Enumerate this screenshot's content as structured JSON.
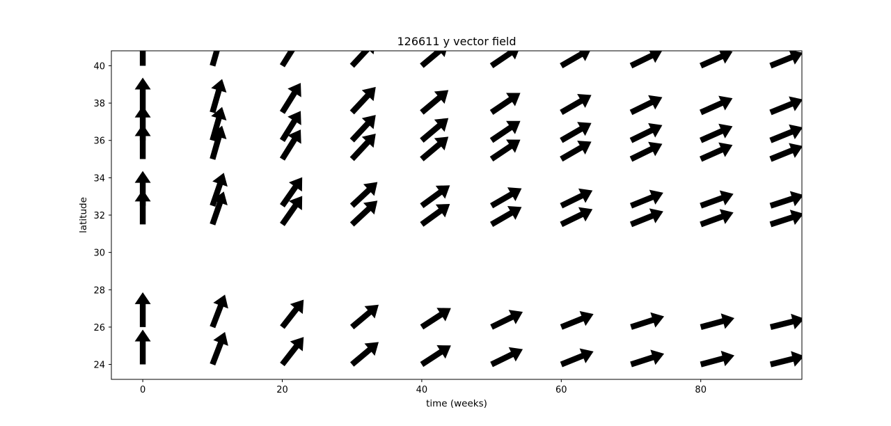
{
  "chart_data": {
    "type": "quiver",
    "title": "126611 y vector field",
    "xlabel": "time (weeks)",
    "ylabel": "latitude",
    "xlim": [
      -4.5,
      94.5
    ],
    "ylim": [
      23.2,
      40.8
    ],
    "x_ticks": [
      0,
      20,
      40,
      60,
      80
    ],
    "y_ticks": [
      24,
      26,
      28,
      30,
      32,
      34,
      36,
      38,
      40
    ],
    "x_tick_labels": [
      "0",
      "20",
      "40",
      "60",
      "80"
    ],
    "y_tick_labels": [
      "24",
      "26",
      "28",
      "30",
      "32",
      "34",
      "36",
      "38",
      "40"
    ],
    "grid": false,
    "arrow_color": "#000000",
    "x": [
      0,
      10,
      20,
      30,
      40,
      50,
      60,
      70,
      80,
      90
    ],
    "latitudes": [
      24,
      26,
      31.5,
      32.5,
      35,
      36,
      37.5,
      40
    ],
    "directions_deg": {
      "24": [
        90,
        69,
        52,
        40,
        33,
        26,
        22,
        18,
        15,
        14
      ],
      "26": [
        90,
        69,
        52,
        40,
        33,
        26,
        22,
        18,
        15,
        14
      ],
      "31.5": [
        90,
        71,
        55,
        43,
        36,
        30,
        26,
        22,
        20,
        18
      ],
      "32.5": [
        90,
        71,
        55,
        43,
        36,
        30,
        26,
        22,
        20,
        18
      ],
      "35": [
        90,
        74,
        58,
        47,
        40,
        34,
        30,
        26,
        24,
        22
      ],
      "36": [
        90,
        74,
        58,
        47,
        40,
        34,
        30,
        26,
        24,
        22
      ],
      "37.5": [
        90,
        74,
        58,
        47,
        40,
        34,
        30,
        26,
        24,
        22
      ],
      "40": [
        90,
        74,
        58,
        47,
        40,
        34,
        30,
        26,
        24,
        22
      ]
    }
  }
}
